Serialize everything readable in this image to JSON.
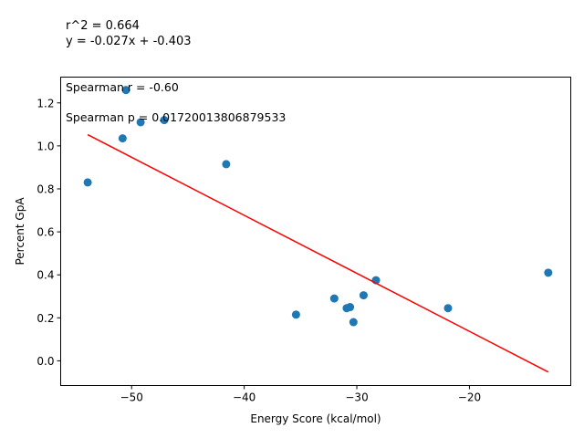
{
  "header": {
    "r2_line": "r^2 = 0.664",
    "eq_line": "y = -0.027x + -0.403"
  },
  "annotations": {
    "spearman_r": "Spearman r = -0.60",
    "spearman_p": "Spearman p = 0.01720013806879533"
  },
  "chart_data": {
    "type": "scatter",
    "xlabel": "Energy Score (kcal/mol)",
    "ylabel": "Percent GpA",
    "xlim": [
      -56.3,
      -11.0
    ],
    "ylim": [
      -0.115,
      1.32
    ],
    "xticks": [
      -50,
      -40,
      -30,
      -20
    ],
    "xtick_labels": [
      "−50",
      "−40",
      "−30",
      "−20"
    ],
    "yticks": [
      0.0,
      0.2,
      0.4,
      0.6,
      0.8,
      1.0,
      1.2
    ],
    "ytick_labels": [
      "0.0",
      "0.2",
      "0.4",
      "0.6",
      "0.8",
      "1.0",
      "1.2"
    ],
    "grid": false,
    "series": [
      {
        "kind": "points",
        "color": "#1f77b4",
        "x": [
          -53.9,
          -50.5,
          -50.8,
          -49.2,
          -47.1,
          -41.6,
          -35.4,
          -32.0,
          -30.9,
          -30.6,
          -30.3,
          -29.4,
          -28.3,
          -21.9,
          -13.0
        ],
        "y": [
          0.83,
          1.26,
          1.035,
          1.11,
          1.12,
          0.915,
          0.215,
          0.29,
          0.245,
          0.25,
          0.18,
          0.305,
          0.375,
          0.245,
          0.41
        ]
      },
      {
        "kind": "fit-line",
        "color": "#ff0000",
        "x": [
          -53.9,
          -13.0
        ],
        "y": [
          1.0523,
          -0.052
        ]
      }
    ]
  }
}
